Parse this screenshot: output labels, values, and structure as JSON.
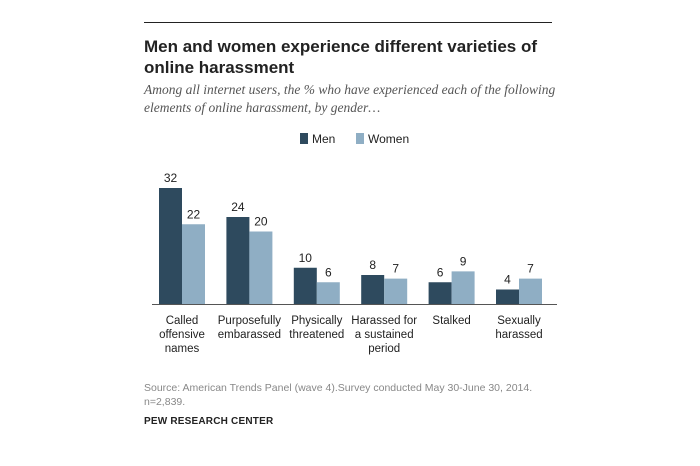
{
  "header": {
    "title": "Men and women experience different varieties of online harassment",
    "subtitle": "Among all internet users, the % who have experienced each of the following elements of online harassment, by gender…"
  },
  "footer": {
    "source": "Source: American Trends Panel (wave 4).Survey conducted May 30-June 30, 2014. n=2,839.",
    "brand": "PEW RESEARCH CENTER"
  },
  "colors": {
    "men": "#2e4a5e",
    "women": "#8faec4",
    "baseline": "#555555"
  },
  "chart_data": {
    "type": "bar",
    "categories": [
      [
        "Called",
        "offensive",
        "names"
      ],
      [
        "Purposefully",
        "embarassed"
      ],
      [
        "Physically",
        "threatened"
      ],
      [
        "Harassed for",
        "a sustained",
        "period"
      ],
      [
        "Stalked"
      ],
      [
        "Sexually",
        "harassed"
      ]
    ],
    "series": [
      {
        "name": "Men",
        "values": [
          32,
          24,
          10,
          8,
          6,
          4
        ]
      },
      {
        "name": "Women",
        "values": [
          22,
          20,
          6,
          7,
          9,
          7
        ]
      }
    ],
    "ylim": [
      0,
      32
    ],
    "grid": false,
    "legend": "top-center"
  }
}
